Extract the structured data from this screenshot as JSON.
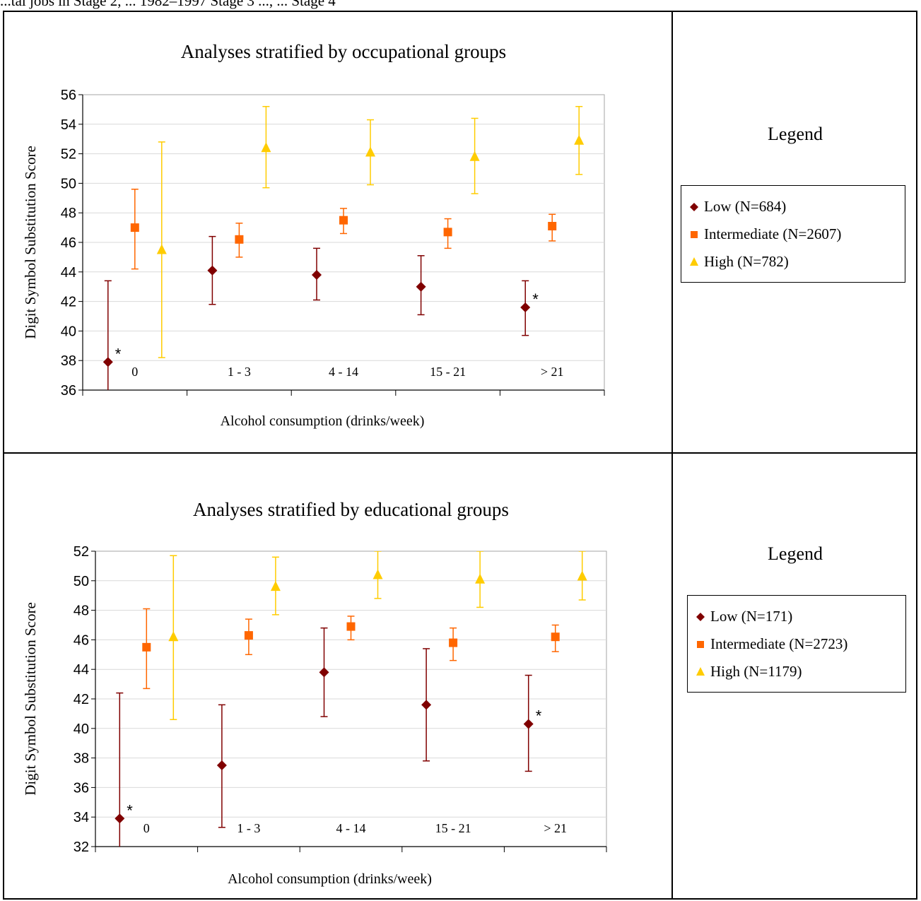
{
  "top_caption": "...tal jobs in Stage 2, ... 1982–1997 Stage 3 ..., ... Stage 4",
  "legend_title": "Legend",
  "colors": {
    "low": "#800000",
    "intermediate": "#FF6600",
    "high": "#FFCC00",
    "grid": "#D9D9D9"
  },
  "chart_data": [
    {
      "type": "scatter",
      "title": "Analyses stratified by occupational groups",
      "xlabel": "Alcohol consumption  (drinks/week)",
      "ylabel": "Digit Symbol Substitution Score",
      "categories": [
        "0",
        "1 - 3",
        "4 - 14",
        "15 - 21",
        "> 21"
      ],
      "ylim": [
        36,
        56
      ],
      "y_ticks": [
        "36",
        "38",
        "40",
        "42",
        "44",
        "46",
        "48",
        "50",
        "52",
        "54",
        "56"
      ],
      "grid": true,
      "legend_placement": "right",
      "series": [
        {
          "name": "Low (N=684)",
          "marker": "diamond",
          "color": "#800000",
          "values": [
            37.9,
            44.1,
            43.8,
            43.0,
            41.6
          ],
          "lower": [
            35.9,
            41.8,
            42.1,
            41.1,
            39.7
          ],
          "upper": [
            43.4,
            46.4,
            45.6,
            45.1,
            43.4
          ],
          "annotations": [
            "*",
            "",
            "",
            "",
            "*"
          ]
        },
        {
          "name": "Intermediate (N=2607)",
          "marker": "square",
          "color": "#FF6600",
          "values": [
            47.0,
            46.2,
            47.5,
            46.7,
            47.1
          ],
          "lower": [
            44.2,
            45.0,
            46.6,
            45.6,
            46.1
          ],
          "upper": [
            49.6,
            47.3,
            48.3,
            47.6,
            47.9
          ],
          "annotations": [
            "",
            "",
            "",
            "",
            ""
          ]
        },
        {
          "name": "High (N=782)",
          "marker": "triangle",
          "color": "#FFCC00",
          "values": [
            45.5,
            52.4,
            52.1,
            51.8,
            52.9
          ],
          "lower": [
            38.2,
            49.7,
            49.9,
            49.3,
            50.6
          ],
          "upper": [
            52.8,
            55.2,
            54.3,
            54.4,
            55.2
          ],
          "annotations": [
            "",
            "",
            "",
            "",
            ""
          ]
        }
      ]
    },
    {
      "type": "scatter",
      "title": "Analyses stratified by educational groups",
      "xlabel": "Alcohol consumption (drinks/week)",
      "ylabel": "Digit Symbol Substitution Score",
      "categories": [
        "0",
        "1 - 3",
        "4 - 14",
        "15 - 21",
        "> 21"
      ],
      "ylim": [
        32,
        52
      ],
      "y_ticks": [
        "32",
        "34",
        "36",
        "38",
        "40",
        "42",
        "44",
        "46",
        "48",
        "50",
        "52"
      ],
      "grid": true,
      "legend_placement": "right",
      "series": [
        {
          "name": "Low (N=171)",
          "marker": "diamond",
          "color": "#800000",
          "values": [
            33.9,
            37.5,
            43.8,
            41.6,
            40.3
          ],
          "lower": [
            31.5,
            33.3,
            40.8,
            37.8,
            37.1
          ],
          "upper": [
            42.4,
            41.6,
            46.8,
            45.4,
            43.6
          ],
          "annotations": [
            "*",
            "",
            "",
            "",
            "*"
          ]
        },
        {
          "name": "Intermediate (N=2723)",
          "marker": "square",
          "color": "#FF6600",
          "values": [
            45.5,
            46.3,
            46.9,
            45.8,
            46.2
          ],
          "lower": [
            42.7,
            45.0,
            46.0,
            44.6,
            45.2
          ],
          "upper": [
            48.1,
            47.4,
            47.6,
            46.8,
            47.0
          ],
          "annotations": [
            "",
            "",
            "",
            "",
            ""
          ]
        },
        {
          "name": "High (N=1179)",
          "marker": "triangle",
          "color": "#FFCC00",
          "values": [
            46.2,
            49.6,
            50.4,
            50.1,
            50.3
          ],
          "lower": [
            40.6,
            47.7,
            48.8,
            48.2,
            48.7
          ],
          "upper": [
            51.7,
            51.6,
            52.0,
            52.0,
            52.0
          ],
          "annotations": [
            "",
            "",
            "",
            "",
            ""
          ]
        }
      ]
    }
  ]
}
